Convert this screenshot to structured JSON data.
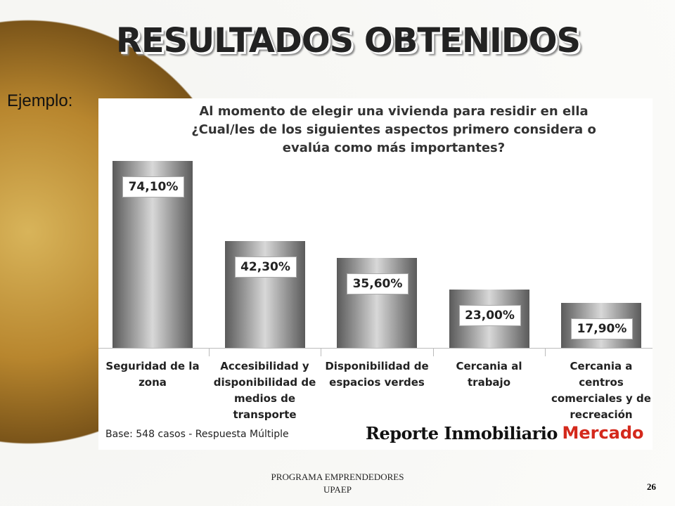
{
  "slide_title": "RESULTADOS OBTENIDOS",
  "intro": "Ejemplo:",
  "chart_data": {
    "type": "bar",
    "title": "Al momento de elegir una vivienda para residir en ella ¿Cual/les  de los siguientes aspectos primero considera o evalúa como más importantes?",
    "categories": [
      "Seguridad de la zona",
      "Accesibilidad y disponibilidad de medios de transporte",
      "Disponibilidad de espacios verdes",
      "Cercania al trabajo",
      "Cercania a centros comerciales y de recreación"
    ],
    "values": [
      74.1,
      42.3,
      35.6,
      23.0,
      17.9
    ],
    "value_labels": [
      "74,10%",
      "42,30%",
      "35,60%",
      "23,00%",
      "17,90%"
    ],
    "note": "Base: 548 casos - Respuesta Múltiple",
    "source": "Reporte Inmobiliario",
    "source_tag": "Mercado"
  },
  "footer": {
    "lines": [
      "PROGRAMA EMPRENDEDORES",
      "UPAEP"
    ],
    "page": "26"
  }
}
